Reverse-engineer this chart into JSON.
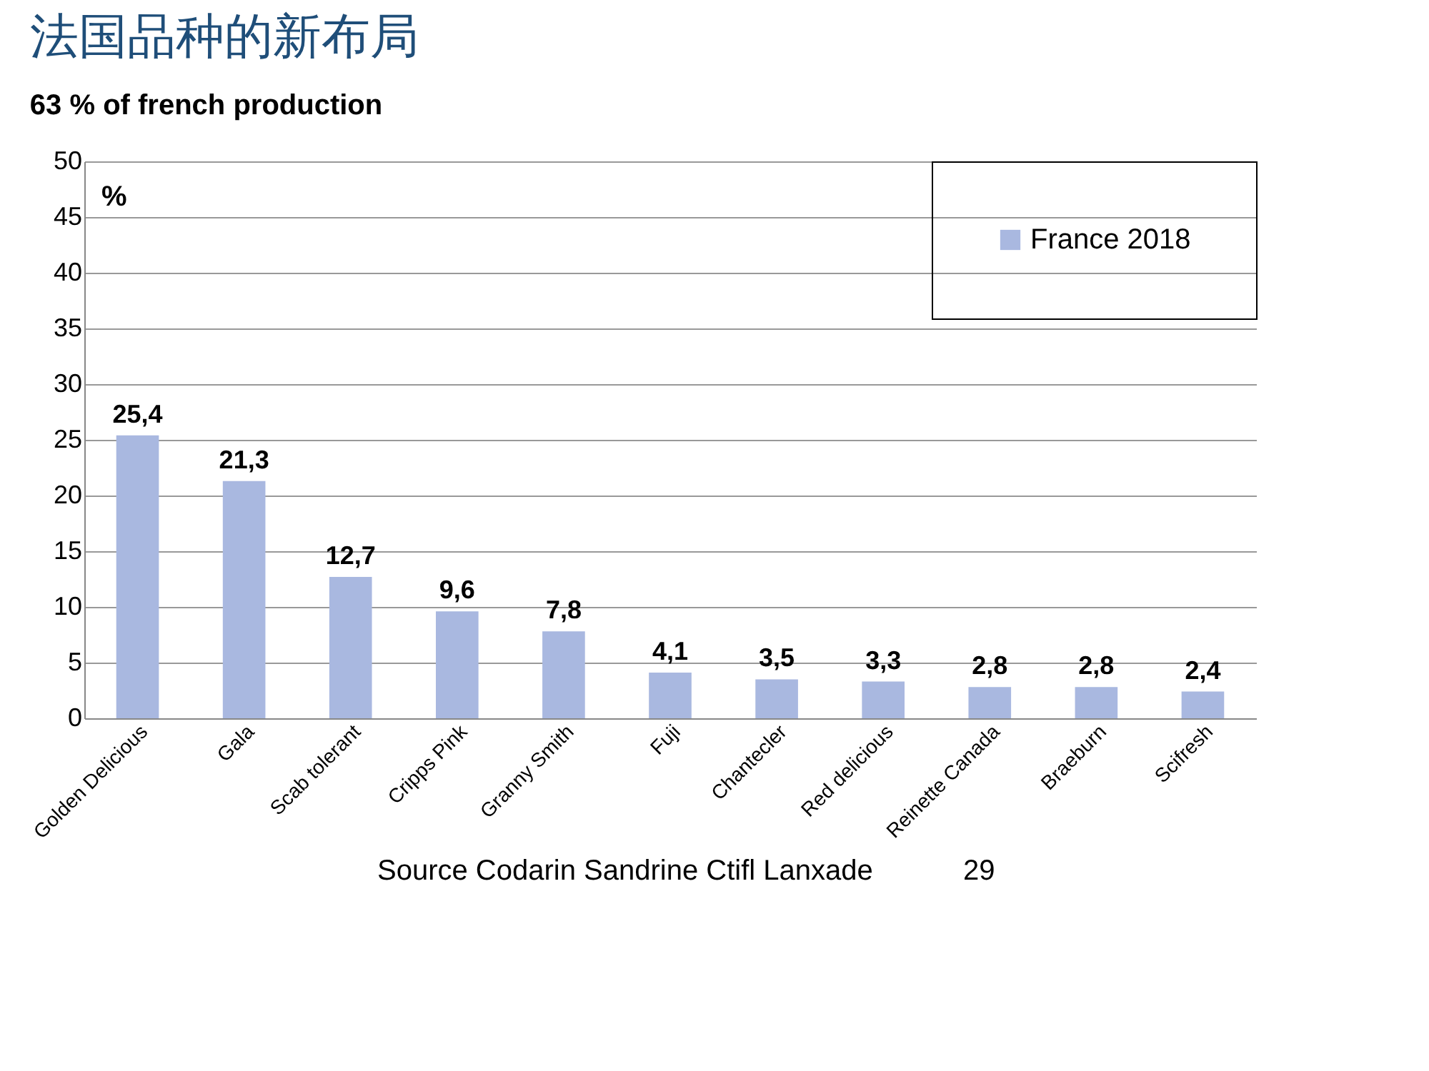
{
  "chart_data": {
    "type": "bar",
    "title": "法国品种的新布局",
    "subtitle": "63 % of french production",
    "ylabel": "%",
    "categories": [
      "Golden Delicious",
      "Gala",
      "Scab tolerant",
      "Cripps Pink",
      "Granny Smith",
      "Fuji",
      "Chantecler",
      "Red delicious",
      "Reinette Canada",
      "Braeburn",
      "Scifresh"
    ],
    "series": [
      {
        "name": "France 2018",
        "color": "#a9b8e0",
        "values": [
          25.4,
          21.3,
          12.7,
          9.6,
          7.8,
          4.1,
          3.5,
          3.3,
          2.8,
          2.8,
          2.4
        ]
      }
    ],
    "value_labels": [
      "25,4",
      "21,3",
      "12,7",
      "9,6",
      "7,8",
      "4,1",
      "3,5",
      "3,3",
      "2,8",
      "2,8",
      "2,4"
    ],
    "ylim": [
      0,
      50
    ],
    "yticks": [
      0,
      5,
      10,
      15,
      20,
      25,
      30,
      35,
      40,
      45,
      50
    ],
    "grid": "y",
    "legend": "top right",
    "annotations": [
      "Source Codarin Sandrine Ctifl Lanxade",
      "29"
    ]
  }
}
